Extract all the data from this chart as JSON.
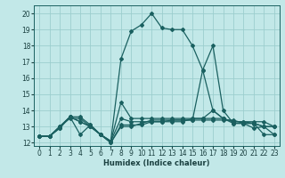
{
  "xlabel": "Humidex (Indice chaleur)",
  "bg_color": "#c2e8e8",
  "grid_color": "#9ccece",
  "line_color": "#1a6060",
  "xlim": [
    -0.5,
    23.5
  ],
  "ylim": [
    11.8,
    20.5
  ],
  "yticks": [
    12,
    13,
    14,
    15,
    16,
    17,
    18,
    19,
    20
  ],
  "xticks": [
    0,
    1,
    2,
    3,
    4,
    5,
    6,
    7,
    8,
    9,
    10,
    11,
    12,
    13,
    14,
    15,
    16,
    17,
    18,
    19,
    20,
    21,
    22,
    23
  ],
  "series": [
    [
      12.4,
      12.4,
      12.9,
      13.6,
      13.6,
      13.1,
      12.5,
      12.1,
      17.2,
      18.9,
      19.3,
      20.0,
      19.1,
      19.0,
      19.0,
      18.0,
      16.5,
      14.0,
      13.5,
      13.2,
      13.2,
      13.2,
      12.5,
      12.5
    ],
    [
      12.4,
      12.4,
      12.9,
      13.6,
      12.5,
      13.1,
      12.5,
      12.1,
      14.5,
      13.5,
      13.5,
      13.5,
      13.5,
      13.5,
      13.5,
      13.5,
      13.5,
      13.5,
      13.5,
      13.3,
      13.3,
      13.3,
      13.3,
      13.0
    ],
    [
      12.4,
      12.4,
      13.0,
      13.6,
      13.3,
      13.0,
      12.5,
      12.1,
      13.5,
      13.3,
      13.3,
      13.3,
      13.3,
      13.3,
      13.3,
      13.5,
      13.5,
      14.0,
      13.5,
      13.3,
      13.3,
      13.2,
      13.0,
      12.5
    ],
    [
      12.4,
      12.4,
      13.0,
      13.6,
      13.3,
      13.0,
      12.5,
      12.0,
      13.1,
      13.1,
      13.1,
      13.3,
      13.3,
      13.4,
      13.4,
      13.4,
      13.4,
      13.4,
      13.4,
      13.4,
      13.2,
      13.2,
      13.0,
      13.0
    ],
    [
      12.4,
      12.4,
      13.0,
      13.5,
      13.5,
      13.0,
      12.5,
      12.0,
      13.0,
      13.0,
      13.2,
      13.4,
      13.4,
      13.4,
      13.4,
      13.4,
      16.5,
      18.0,
      14.0,
      13.2,
      13.2,
      12.9,
      13.0,
      13.0
    ]
  ]
}
